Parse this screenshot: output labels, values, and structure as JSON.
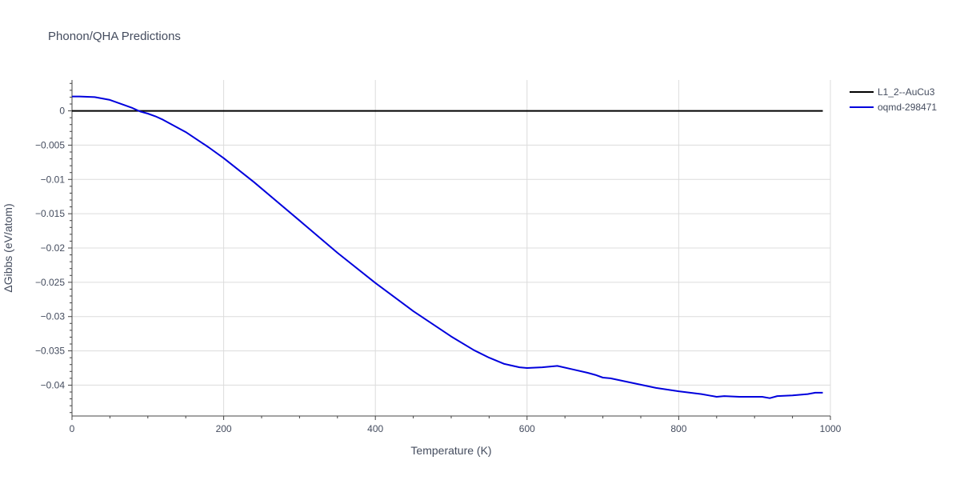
{
  "chart_data": {
    "type": "line",
    "title": "Phonon/QHA Predictions",
    "xlabel": "Temperature (K)",
    "ylabel": "ΔGibbs (eV/atom)",
    "xlim": [
      0,
      1000
    ],
    "ylim": [
      -0.0445,
      0.0045
    ],
    "x_ticks": [
      0,
      200,
      400,
      600,
      800,
      1000
    ],
    "x_tick_labels": [
      "0",
      "200",
      "400",
      "600",
      "800",
      "1000"
    ],
    "y_ticks": [
      0,
      -0.005,
      -0.01,
      -0.015,
      -0.02,
      -0.025,
      -0.03,
      -0.035,
      -0.04
    ],
    "y_tick_labels": [
      "0",
      "−0.005",
      "−0.01",
      "−0.015",
      "−0.02",
      "−0.025",
      "−0.03",
      "−0.035",
      "−0.04"
    ],
    "grid": true,
    "legend_position": "top-right",
    "series": [
      {
        "name": "L1_2--AuCu3",
        "color": "#000000",
        "x": [
          0,
          990
        ],
        "y": [
          0,
          0
        ]
      },
      {
        "name": "oqmd-298471",
        "color": "#0000dd",
        "x": [
          0,
          10,
          20,
          30,
          40,
          50,
          60,
          70,
          80,
          90,
          100,
          110,
          120,
          150,
          180,
          200,
          240,
          300,
          350,
          400,
          450,
          500,
          530,
          550,
          570,
          590,
          600,
          620,
          640,
          660,
          680,
          690,
          700,
          710,
          740,
          770,
          800,
          830,
          840,
          850,
          860,
          880,
          900,
          910,
          920,
          930,
          950,
          970,
          980,
          990
        ],
        "y": [
          0.0021,
          0.0021,
          0.00205,
          0.002,
          0.0018,
          0.0016,
          0.0012,
          0.0008,
          0.0004,
          -0.0001,
          -0.0004,
          -0.0008,
          -0.0013,
          -0.0031,
          -0.0053,
          -0.0069,
          -0.0104,
          -0.016,
          -0.0207,
          -0.0251,
          -0.0292,
          -0.0329,
          -0.0349,
          -0.036,
          -0.0369,
          -0.0374,
          -0.0375,
          -0.0374,
          -0.0372,
          -0.0377,
          -0.0382,
          -0.0385,
          -0.0389,
          -0.039,
          -0.0397,
          -0.0404,
          -0.0409,
          -0.0413,
          -0.0415,
          -0.0417,
          -0.0416,
          -0.0417,
          -0.0417,
          -0.0417,
          -0.0419,
          -0.0416,
          -0.0415,
          -0.0413,
          -0.0411,
          -0.0411
        ]
      }
    ]
  }
}
